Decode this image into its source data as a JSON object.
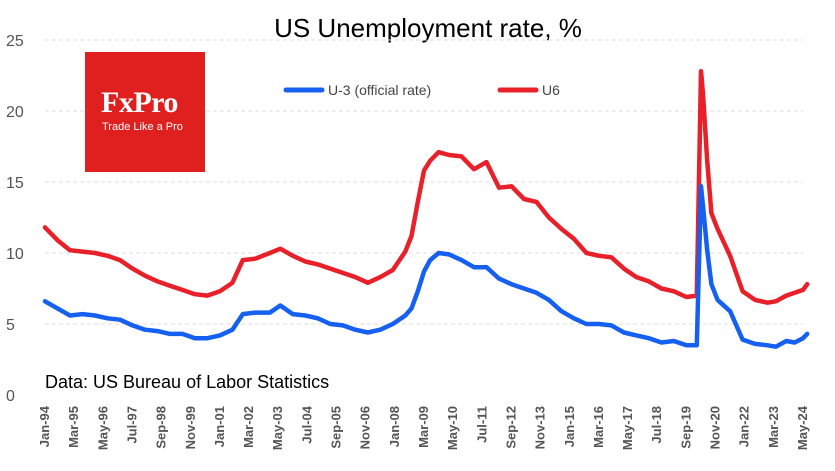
{
  "logo": {
    "brand": "FxPro",
    "tagline": "Trade Like a Pro"
  },
  "source_note": "Data: US Bureau of Labor Statistics",
  "colors": {
    "u3": "#1560f0",
    "u6": "#e8202a",
    "grid": "#dcdcdc",
    "logo_bg": "#e0201e"
  },
  "chart_data": {
    "type": "line",
    "title": "US Unemployment rate, %",
    "xlabel": "",
    "ylabel": "",
    "ylim": [
      0,
      25
    ],
    "yticks": [
      0,
      5,
      10,
      15,
      20,
      25
    ],
    "grid": "horizontal-dashed",
    "legend_position": "top-center",
    "x_tick_labels": [
      "Jan-94",
      "Mar-95",
      "May-96",
      "Jul-97",
      "Sep-98",
      "Nov-99",
      "Jan-01",
      "Mar-02",
      "May-03",
      "Jul-04",
      "Sep-05",
      "Nov-06",
      "Jan-08",
      "Mar-09",
      "May-10",
      "Jul-11",
      "Sep-12",
      "Nov-13",
      "Jan-15",
      "Mar-16",
      "May-17",
      "Jul-18",
      "Sep-19",
      "Nov-20",
      "Jan-22",
      "Mar-23",
      "May-24"
    ],
    "x_range": [
      "1994-01",
      "2024-05"
    ],
    "series": [
      {
        "name": "U-3 (official rate)",
        "color": "#1560f0",
        "points": [
          [
            "1994-01",
            6.6
          ],
          [
            "1994-07",
            6.1
          ],
          [
            "1995-01",
            5.6
          ],
          [
            "1995-07",
            5.7
          ],
          [
            "1996-01",
            5.6
          ],
          [
            "1996-07",
            5.4
          ],
          [
            "1997-01",
            5.3
          ],
          [
            "1997-07",
            4.9
          ],
          [
            "1998-01",
            4.6
          ],
          [
            "1998-07",
            4.5
          ],
          [
            "1999-01",
            4.3
          ],
          [
            "1999-07",
            4.3
          ],
          [
            "2000-01",
            4.0
          ],
          [
            "2000-07",
            4.0
          ],
          [
            "2001-01",
            4.2
          ],
          [
            "2001-07",
            4.6
          ],
          [
            "2001-12",
            5.7
          ],
          [
            "2002-06",
            5.8
          ],
          [
            "2003-01",
            5.8
          ],
          [
            "2003-06",
            6.3
          ],
          [
            "2003-12",
            5.7
          ],
          [
            "2004-06",
            5.6
          ],
          [
            "2004-12",
            5.4
          ],
          [
            "2005-06",
            5.0
          ],
          [
            "2005-12",
            4.9
          ],
          [
            "2006-06",
            4.6
          ],
          [
            "2006-12",
            4.4
          ],
          [
            "2007-06",
            4.6
          ],
          [
            "2007-12",
            5.0
          ],
          [
            "2008-06",
            5.6
          ],
          [
            "2008-09",
            6.1
          ],
          [
            "2008-12",
            7.3
          ],
          [
            "2009-03",
            8.7
          ],
          [
            "2009-06",
            9.5
          ],
          [
            "2009-10",
            10.0
          ],
          [
            "2010-03",
            9.9
          ],
          [
            "2010-09",
            9.5
          ],
          [
            "2011-03",
            9.0
          ],
          [
            "2011-09",
            9.0
          ],
          [
            "2012-03",
            8.2
          ],
          [
            "2012-09",
            7.8
          ],
          [
            "2013-03",
            7.5
          ],
          [
            "2013-09",
            7.2
          ],
          [
            "2014-03",
            6.7
          ],
          [
            "2014-09",
            5.9
          ],
          [
            "2015-03",
            5.4
          ],
          [
            "2015-09",
            5.0
          ],
          [
            "2016-03",
            5.0
          ],
          [
            "2016-09",
            4.9
          ],
          [
            "2017-03",
            4.4
          ],
          [
            "2017-09",
            4.2
          ],
          [
            "2018-03",
            4.0
          ],
          [
            "2018-09",
            3.7
          ],
          [
            "2019-03",
            3.8
          ],
          [
            "2019-09",
            3.5
          ],
          [
            "2020-02",
            3.5
          ],
          [
            "2020-04",
            14.7
          ],
          [
            "2020-05",
            13.3
          ],
          [
            "2020-07",
            10.2
          ],
          [
            "2020-09",
            7.8
          ],
          [
            "2020-12",
            6.7
          ],
          [
            "2021-06",
            5.9
          ],
          [
            "2021-12",
            3.9
          ],
          [
            "2022-06",
            3.6
          ],
          [
            "2022-12",
            3.5
          ],
          [
            "2023-04",
            3.4
          ],
          [
            "2023-09",
            3.8
          ],
          [
            "2024-01",
            3.7
          ],
          [
            "2024-05",
            4.0
          ],
          [
            "2024-07",
            4.3
          ]
        ]
      },
      {
        "name": "U6",
        "color": "#e8202a",
        "points": [
          [
            "1994-01",
            11.8
          ],
          [
            "1994-07",
            10.9
          ],
          [
            "1995-01",
            10.2
          ],
          [
            "1995-07",
            10.1
          ],
          [
            "1996-01",
            10.0
          ],
          [
            "1996-07",
            9.8
          ],
          [
            "1997-01",
            9.5
          ],
          [
            "1997-07",
            8.9
          ],
          [
            "1998-01",
            8.4
          ],
          [
            "1998-07",
            8.0
          ],
          [
            "1999-01",
            7.7
          ],
          [
            "1999-07",
            7.4
          ],
          [
            "2000-01",
            7.1
          ],
          [
            "2000-07",
            7.0
          ],
          [
            "2001-01",
            7.3
          ],
          [
            "2001-07",
            7.9
          ],
          [
            "2001-12",
            9.5
          ],
          [
            "2002-06",
            9.6
          ],
          [
            "2003-01",
            10.0
          ],
          [
            "2003-06",
            10.3
          ],
          [
            "2003-12",
            9.8
          ],
          [
            "2004-06",
            9.4
          ],
          [
            "2004-12",
            9.2
          ],
          [
            "2005-06",
            8.9
          ],
          [
            "2005-12",
            8.6
          ],
          [
            "2006-06",
            8.3
          ],
          [
            "2006-12",
            7.9
          ],
          [
            "2007-06",
            8.3
          ],
          [
            "2007-12",
            8.8
          ],
          [
            "2008-06",
            10.1
          ],
          [
            "2008-09",
            11.2
          ],
          [
            "2008-12",
            13.6
          ],
          [
            "2009-03",
            15.8
          ],
          [
            "2009-06",
            16.5
          ],
          [
            "2009-10",
            17.1
          ],
          [
            "2010-03",
            16.9
          ],
          [
            "2010-09",
            16.8
          ],
          [
            "2011-03",
            15.9
          ],
          [
            "2011-09",
            16.4
          ],
          [
            "2012-03",
            14.6
          ],
          [
            "2012-09",
            14.7
          ],
          [
            "2013-03",
            13.8
          ],
          [
            "2013-09",
            13.6
          ],
          [
            "2014-03",
            12.5
          ],
          [
            "2014-09",
            11.7
          ],
          [
            "2015-03",
            11.0
          ],
          [
            "2015-09",
            10.0
          ],
          [
            "2016-03",
            9.8
          ],
          [
            "2016-09",
            9.7
          ],
          [
            "2017-03",
            8.9
          ],
          [
            "2017-09",
            8.3
          ],
          [
            "2018-03",
            8.0
          ],
          [
            "2018-09",
            7.5
          ],
          [
            "2019-03",
            7.3
          ],
          [
            "2019-09",
            6.9
          ],
          [
            "2020-02",
            7.0
          ],
          [
            "2020-04",
            22.8
          ],
          [
            "2020-05",
            21.2
          ],
          [
            "2020-07",
            16.5
          ],
          [
            "2020-09",
            12.8
          ],
          [
            "2020-12",
            11.7
          ],
          [
            "2021-06",
            9.8
          ],
          [
            "2021-12",
            7.3
          ],
          [
            "2022-06",
            6.7
          ],
          [
            "2022-12",
            6.5
          ],
          [
            "2023-04",
            6.6
          ],
          [
            "2023-09",
            7.0
          ],
          [
            "2024-01",
            7.2
          ],
          [
            "2024-05",
            7.4
          ],
          [
            "2024-07",
            7.8
          ]
        ]
      }
    ]
  }
}
